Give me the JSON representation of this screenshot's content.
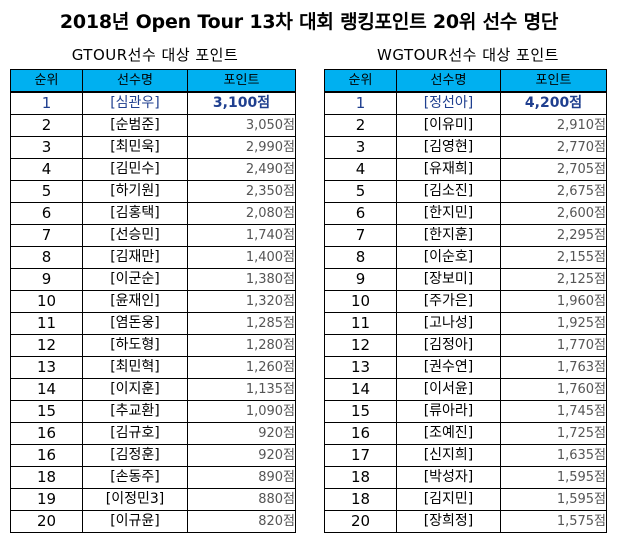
{
  "title": "2018년 Open Tour 13차 대회 랭킹포인트 20위 선수 명단",
  "gtour": {
    "subtitle": "GTOUR선수 대상 포인트",
    "headers": [
      "순위",
      "선수명",
      "포인트"
    ],
    "rows": [
      {
        "rank": "1",
        "name": "[심관우]",
        "points": "3,100점"
      },
      {
        "rank": "2",
        "name": "[순범준]",
        "points": "3,050점"
      },
      {
        "rank": "3",
        "name": "[최민욱]",
        "points": "2,990점"
      },
      {
        "rank": "4",
        "name": "[김민수]",
        "points": "2,490점"
      },
      {
        "rank": "5",
        "name": "[하기원]",
        "points": "2,350점"
      },
      {
        "rank": "6",
        "name": "[김홍택]",
        "points": "2,080점"
      },
      {
        "rank": "7",
        "name": "[선승민]",
        "points": "1,740점"
      },
      {
        "rank": "8",
        "name": "[김재만]",
        "points": "1,400점"
      },
      {
        "rank": "9",
        "name": "[이군순]",
        "points": "1,380점"
      },
      {
        "rank": "10",
        "name": "[윤재인]",
        "points": "1,320점"
      },
      {
        "rank": "11",
        "name": "[염돈웅]",
        "points": "1,285점"
      },
      {
        "rank": "12",
        "name": "[하도형]",
        "points": "1,280점"
      },
      {
        "rank": "13",
        "name": "[최민혁]",
        "points": "1,260점"
      },
      {
        "rank": "14",
        "name": "[이지훈]",
        "points": "1,135점"
      },
      {
        "rank": "15",
        "name": "[추교환]",
        "points": "1,090점"
      },
      {
        "rank": "16",
        "name": "[김규호]",
        "points": "920점"
      },
      {
        "rank": "16",
        "name": "[김정훈]",
        "points": "920점"
      },
      {
        "rank": "18",
        "name": "[손동주]",
        "points": "890점"
      },
      {
        "rank": "19",
        "name": "[이정민3]",
        "points": "880점"
      },
      {
        "rank": "20",
        "name": "[이규윤]",
        "points": "820점"
      }
    ]
  },
  "wgtour": {
    "subtitle": "WGTOUR선수 대상 포인트",
    "headers": [
      "순위",
      "선수명",
      "포인트"
    ],
    "rows": [
      {
        "rank": "1",
        "name": "[정선아]",
        "points": "4,200점"
      },
      {
        "rank": "2",
        "name": "[이유미]",
        "points": "2,910점"
      },
      {
        "rank": "3",
        "name": "[김영현]",
        "points": "2,770점"
      },
      {
        "rank": "4",
        "name": "[유재희]",
        "points": "2,705점"
      },
      {
        "rank": "5",
        "name": "[김소진]",
        "points": "2,675점"
      },
      {
        "rank": "6",
        "name": "[한지민]",
        "points": "2,600점"
      },
      {
        "rank": "7",
        "name": "[한지훈]",
        "points": "2,295점"
      },
      {
        "rank": "8",
        "name": "[이순호]",
        "points": "2,155점"
      },
      {
        "rank": "9",
        "name": "[장보미]",
        "points": "2,125점"
      },
      {
        "rank": "10",
        "name": "[주가은]",
        "points": "1,960점"
      },
      {
        "rank": "11",
        "name": "[고나성]",
        "points": "1,925점"
      },
      {
        "rank": "12",
        "name": "[김정아]",
        "points": "1,770점"
      },
      {
        "rank": "13",
        "name": "[권수연]",
        "points": "1,763점"
      },
      {
        "rank": "14",
        "name": "[이서윤]",
        "points": "1,760점"
      },
      {
        "rank": "15",
        "name": "[류아라]",
        "points": "1,745점"
      },
      {
        "rank": "16",
        "name": "[조예진]",
        "points": "1,725점"
      },
      {
        "rank": "17",
        "name": "[신지희]",
        "points": "1,635점"
      },
      {
        "rank": "18",
        "name": "[박성자]",
        "points": "1,595점"
      },
      {
        "rank": "18",
        "name": "[김지민]",
        "points": "1,595점"
      },
      {
        "rank": "20",
        "name": "[장희정]",
        "points": "1,575점"
      }
    ]
  },
  "colors": {
    "header_bg": "#00b0f0",
    "top_rank_text": "#1f3f8f",
    "points_text": "#555555"
  }
}
